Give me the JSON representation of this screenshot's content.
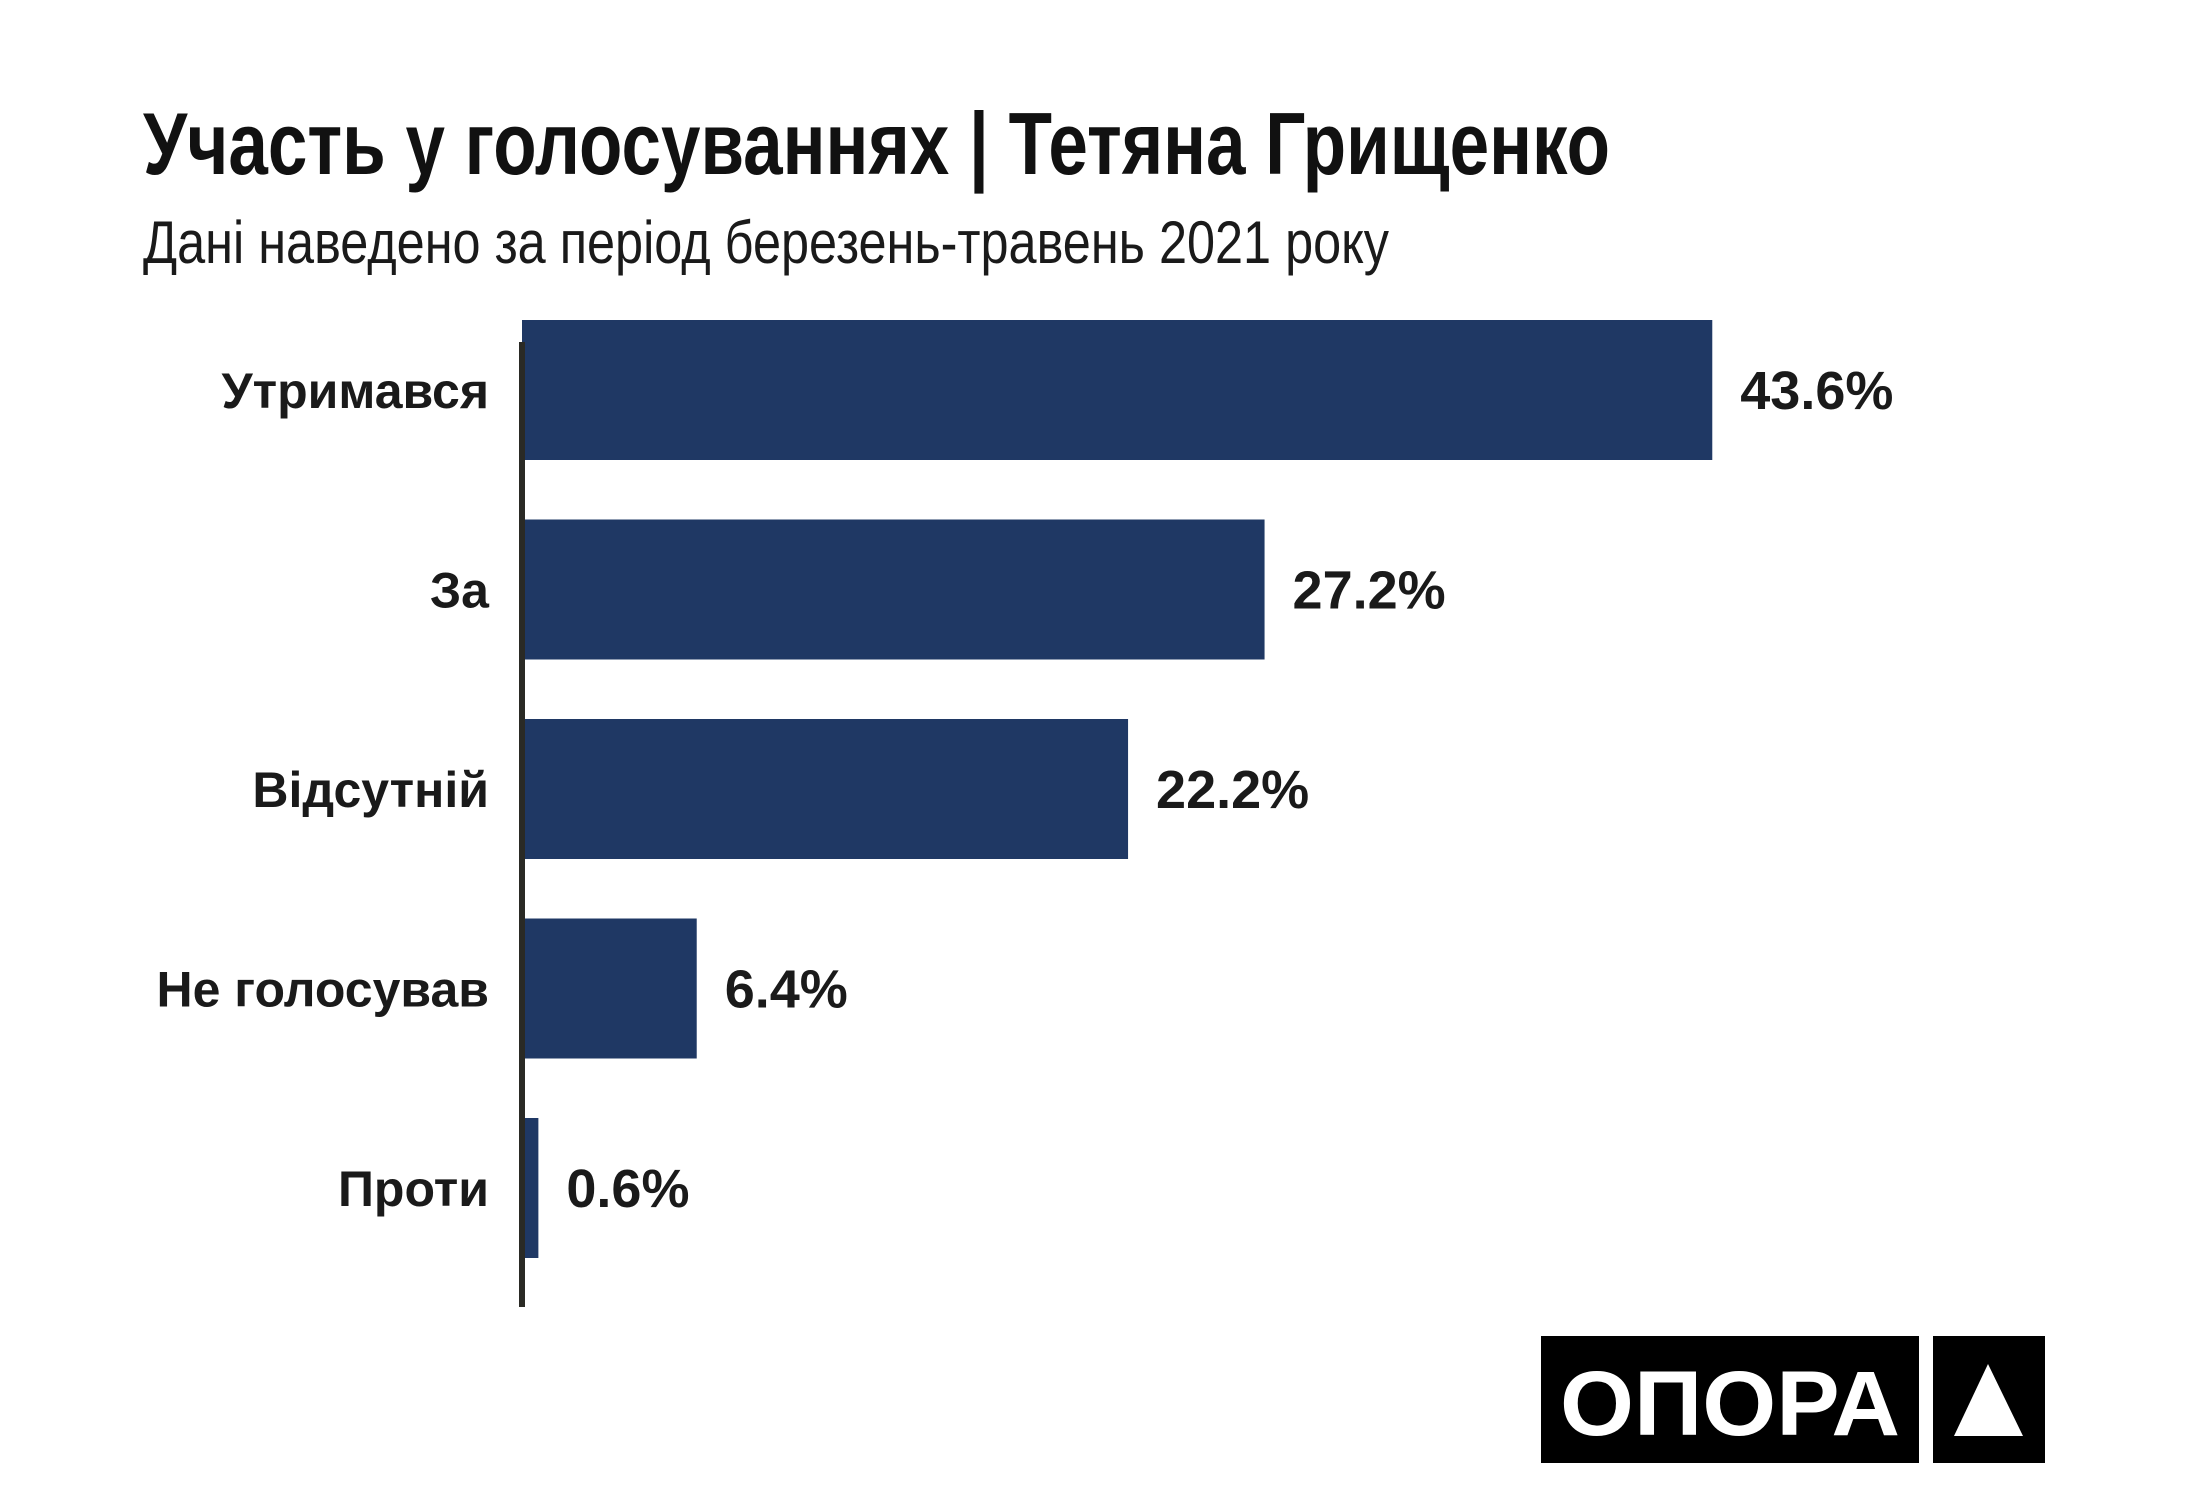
{
  "chart_data": {
    "type": "bar",
    "orientation": "horizontal",
    "title": "Участь у голосуваннях | Тетяна Грищенко",
    "subtitle": "Дані наведено за період березень-травень 2021 року",
    "categories": [
      "Утримався",
      "За",
      "Відсутній",
      "Не голосував",
      "Проти"
    ],
    "values": [
      43.6,
      27.2,
      22.2,
      6.4,
      0.6
    ],
    "value_labels": [
      "43.6%",
      "27.2%",
      "22.2%",
      "6.4%",
      "0.6%"
    ],
    "xlabel": "",
    "ylabel": "",
    "grid": false,
    "legend": "none",
    "bar_color": "#1f3864"
  },
  "logo": {
    "text": "ОПОРА",
    "icon": "triangle-icon"
  }
}
